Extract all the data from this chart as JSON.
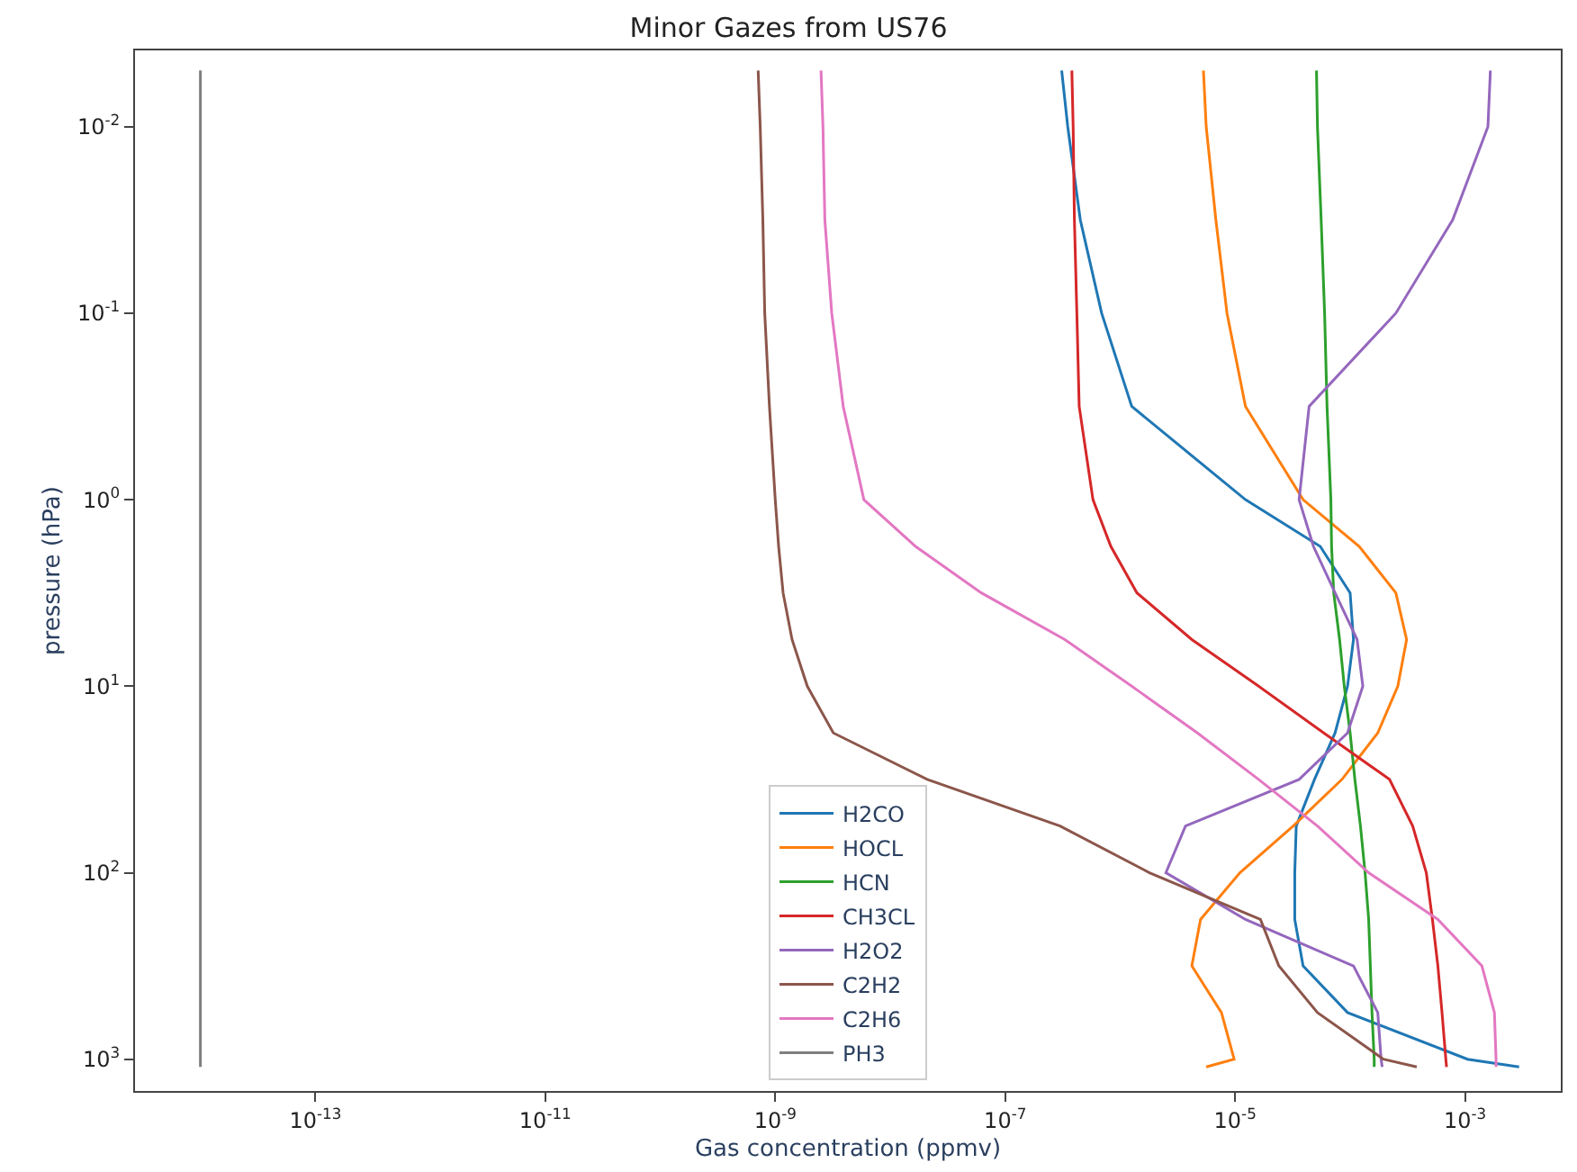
{
  "chart_data": {
    "type": "line",
    "title": "Minor Gazes from US76",
    "xlabel": "Gas concentration (ppmv)",
    "ylabel": "pressure (hPa)",
    "orientation": "horizontal",
    "log": "xy",
    "grid": false,
    "legend": "bottom",
    "x": [
      0.005,
      0.01,
      0.0316,
      0.1,
      0.316,
      1,
      1.78,
      3.16,
      5.62,
      10,
      17.8,
      31.6,
      56.2,
      100,
      178,
      316,
      562,
      1000,
      1100
    ],
    "xlim": [
      2.7e-15,
      0.0068
    ],
    "ylim": [
      1480,
      0.0039
    ],
    "xticks": [
      {
        "value": 1e-13,
        "label": "10$^{-13}$"
      },
      {
        "value": 1e-11,
        "label": "10$^{-11}$"
      },
      {
        "value": 1e-09,
        "label": "10$^{-9}$"
      },
      {
        "value": 1e-07,
        "label": "10$^{-7}$"
      },
      {
        "value": 1e-05,
        "label": "10$^{-5}$"
      },
      {
        "value": 0.001,
        "label": "10$^{-3}$"
      }
    ],
    "yticks": [
      {
        "value": 0.01,
        "label": "10$^{-2}$"
      },
      {
        "value": 0.1,
        "label": "10$^{-1}$"
      },
      {
        "value": 1,
        "label": "10$^{0}$"
      },
      {
        "value": 10,
        "label": "10$^{1}$"
      },
      {
        "value": 100,
        "label": "10$^{2}$"
      },
      {
        "value": 1000,
        "label": "10$^{3}$"
      }
    ],
    "series": [
      {
        "name": "H2CO",
        "color": "#1f77b4",
        "values": [
          3.1e-07,
          3.5e-07,
          4.5e-07,
          6.9e-07,
          1.26e-06,
          1.23e-05,
          5.5e-05,
          0.0001,
          0.000107,
          9.5e-05,
          7.4e-05,
          4.9e-05,
          3.4e-05,
          3.3e-05,
          3.3e-05,
          3.9e-05,
          9.5e-05,
          0.00105,
          0.00295
        ]
      },
      {
        "name": "HOCL",
        "color": "#ff7f0e",
        "values": [
          5.3e-06,
          5.6e-06,
          6.8e-06,
          8.5e-06,
          1.23e-05,
          3.9e-05,
          0.00012,
          0.00025,
          0.00031,
          0.00026,
          0.000174,
          8.5e-05,
          3.2e-05,
          1.1e-05,
          5e-06,
          4.2e-06,
          7.6e-06,
          9.8e-06,
          5.6e-06
        ]
      },
      {
        "name": "HCN",
        "color": "#2ca02c",
        "values": [
          5.1e-05,
          5.2e-05,
          5.6e-05,
          6e-05,
          6.3e-05,
          6.8e-05,
          6.9e-05,
          7.2e-05,
          8.1e-05,
          8.9e-05,
          0.0001,
          0.00011,
          0.000123,
          0.000135,
          0.000145,
          0.00015,
          0.000155,
          0.000162,
          0.000162
        ]
      },
      {
        "name": "CH3CL",
        "color": "#d62728",
        "values": [
          3.8e-07,
          3.9e-07,
          4e-07,
          4.2e-07,
          4.4e-07,
          5.8e-07,
          8.3e-07,
          1.4e-06,
          4.2e-06,
          1.6e-05,
          5.9e-05,
          0.00022,
          0.00035,
          0.00046,
          0.00052,
          0.00058,
          0.00063,
          0.00068,
          0.00069
        ]
      },
      {
        "name": "H2O2",
        "color": "#9467bd",
        "values": [
          0.00166,
          0.00158,
          0.00078,
          0.00025,
          4.4e-05,
          3.6e-05,
          4.8e-05,
          7.4e-05,
          0.000115,
          0.000129,
          9.5e-05,
          3.6e-05,
          3.7e-06,
          2.5e-06,
          1.23e-05,
          0.000107,
          0.000174,
          0.000186,
          0.00019
        ]
      },
      {
        "name": "C2H2",
        "color": "#8c564b",
        "values": [
          7.1e-10,
          7.4e-10,
          7.8e-10,
          8.1e-10,
          8.9e-10,
          1e-09,
          1.07e-09,
          1.17e-09,
          1.4e-09,
          1.9e-09,
          3.2e-09,
          2.1e-08,
          3e-07,
          1.8e-06,
          1.66e-05,
          2.4e-05,
          5.2e-05,
          0.000195,
          0.00038
        ]
      },
      {
        "name": "C2H6",
        "color": "#e377c2",
        "values": [
          2.5e-09,
          2.6e-09,
          2.7e-09,
          3.1e-09,
          3.9e-09,
          5.9e-09,
          1.66e-08,
          6.2e-08,
          3.3e-07,
          1.26e-06,
          4.7e-06,
          1.6e-05,
          5.2e-05,
          0.000145,
          0.00058,
          0.0014,
          0.0018,
          0.00186,
          0.00186
        ]
      },
      {
        "name": "PH3",
        "color": "#7f7f7f",
        "values": [
          1e-14,
          1e-14,
          1e-14,
          1e-14,
          1e-14,
          1e-14,
          1e-14,
          1e-14,
          1e-14,
          1e-14,
          1e-14,
          1e-14,
          1e-14,
          1e-14,
          1e-14,
          1e-14,
          1e-14,
          1e-14,
          1e-14
        ]
      }
    ]
  }
}
